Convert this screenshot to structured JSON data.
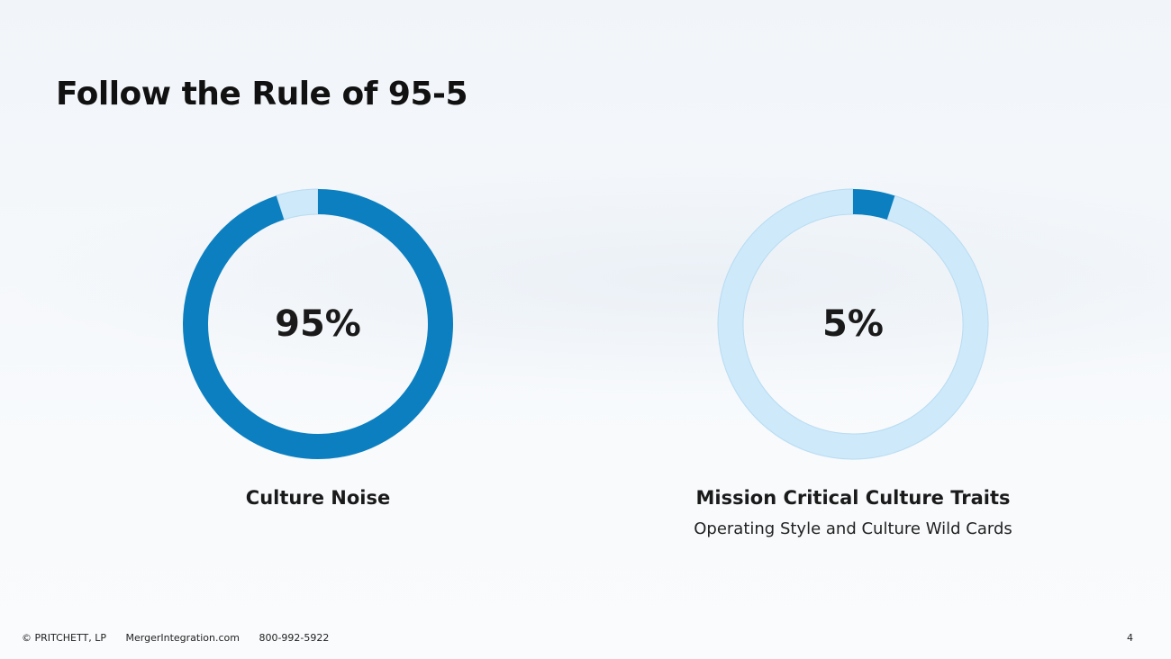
{
  "slide": {
    "title": "Follow the Rule of 95-5"
  },
  "chart_data": [
    {
      "type": "pie",
      "value_percent": 95,
      "center_label": "95%",
      "label": "Culture Noise",
      "sublabel": "",
      "filled_color": "#0b7fc0",
      "remainder_color": "#cde9fa"
    },
    {
      "type": "pie",
      "value_percent": 5,
      "center_label": "5%",
      "label": "Mission Critical Culture Traits",
      "sublabel": "Operating Style and Culture Wild Cards",
      "filled_color": "#0b7fc0",
      "remainder_color": "#cde9fa"
    }
  ],
  "footer": {
    "copyright": "© PRITCHETT, LP",
    "website": "MergerIntegration.com",
    "phone": "800-992-5922",
    "page_number": "4"
  }
}
